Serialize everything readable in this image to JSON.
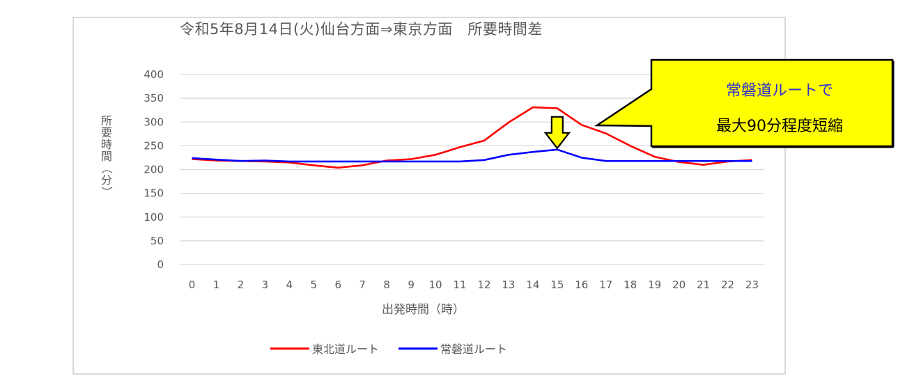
{
  "chart_data": {
    "type": "line",
    "title": "令和5年8月14日(火)仙台方面⇒東京方面　所要時間差",
    "xlabel": "出発時間（時）",
    "ylabel": "所要時間（分）",
    "ylim": [
      0,
      400
    ],
    "yticks": [
      0,
      50,
      100,
      150,
      200,
      250,
      300,
      350,
      400
    ],
    "grid": true,
    "legend_position": "bottom",
    "x": [
      0,
      1,
      2,
      3,
      4,
      5,
      6,
      7,
      8,
      9,
      10,
      11,
      12,
      13,
      14,
      15,
      16,
      17,
      18,
      19,
      20,
      21,
      22,
      23
    ],
    "series": [
      {
        "name": "東北道ルート",
        "color": "#ff0000",
        "values": [
          222,
          219,
          218,
          217,
          215,
          209,
          204,
          209,
          219,
          222,
          231,
          247,
          261,
          299,
          331,
          329,
          294,
          276,
          250,
          227,
          216,
          210,
          217,
          220
        ]
      },
      {
        "name": "常磐道ルート",
        "color": "#0000ff",
        "values": [
          224,
          221,
          218,
          219,
          217,
          217,
          217,
          217,
          217,
          217,
          217,
          217,
          220,
          231,
          237,
          242,
          225,
          218,
          218,
          218,
          218,
          218,
          218,
          218
        ]
      }
    ],
    "annotations": [
      {
        "type": "callout",
        "text_line1": "常磐道ルートで",
        "text_line2": "最大90分程度短縮",
        "background": "#ffff00"
      },
      {
        "type": "down-arrow",
        "at_x": 15,
        "color": "#ffff00"
      }
    ]
  },
  "legend": {
    "items": [
      {
        "label": "東北道ルート",
        "color": "#ff0000"
      },
      {
        "label": "常磐道ルート",
        "color": "#0000ff"
      }
    ]
  },
  "callout": {
    "line1": "常磐道ルートで",
    "line2": "最大90分程度短縮"
  }
}
